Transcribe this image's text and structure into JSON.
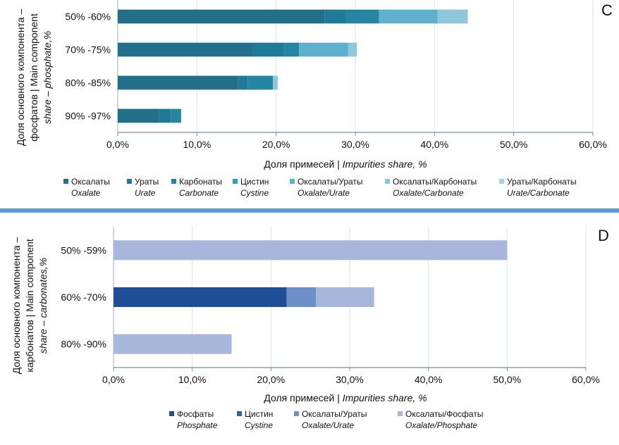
{
  "chart_data": [
    {
      "type": "bar",
      "orientation": "horizontal",
      "stacked": true,
      "panel_letter": "C",
      "categories": [
        "50% -60%",
        "70% -75%",
        "80% -85%",
        "90% -97%"
      ],
      "series": [
        {
          "name": "Оксалаты",
          "name_en": "Oxalate",
          "color": "#226f8a",
          "values": [
            26.1,
            17.0,
            15.2,
            5.2
          ]
        },
        {
          "name": "Ураты",
          "name_en": "Urate",
          "color": "#1e7a96",
          "values": [
            2.7,
            4.0,
            1.2,
            1.5
          ]
        },
        {
          "name": "Карбонаты",
          "name_en": "Carbonate",
          "color": "#2586a4",
          "values": [
            4.2,
            1.9,
            3.2,
            1.3
          ]
        },
        {
          "name": "Цистин",
          "name_en": "Cystine",
          "color": "#2a9dbe",
          "values": [
            0,
            0,
            0,
            0
          ]
        },
        {
          "name": "Оксалаты/Ураты",
          "name_en": "Oxalate/Urate",
          "color": "#5eb0cc",
          "values": [
            7.4,
            6.2,
            0,
            0
          ]
        },
        {
          "name": "Оксалаты/Карбонаты",
          "name_en": "Oxalate/Carbonate",
          "color": "#8cc7da",
          "values": [
            3.8,
            1.1,
            0.6,
            0
          ]
        },
        {
          "name": "Ураты/Карбонаты",
          "name_en": "Urate/Carbonate",
          "color": "#a8cfe0",
          "values": [
            0,
            0,
            0,
            0
          ]
        }
      ],
      "xlim": [
        0,
        60
      ],
      "xticks": [
        "0,0%",
        "10,0%",
        "20,0%",
        "30,0%",
        "40,0%",
        "50,0%",
        "60,0%"
      ],
      "xlabel": "Доля примесей |",
      "xlabel_en": "Impurities share, %",
      "ylabel_line1": "Доля основного компонента –",
      "ylabel_line2": "фосфатов    |    Main component",
      "ylabel_line3": "share    –   phosphate,%",
      "grid": "vertical",
      "legend_position": "bottom"
    },
    {
      "type": "bar",
      "orientation": "horizontal",
      "stacked": true,
      "panel_letter": "D",
      "categories": [
        "50% -59%",
        "60% -70%",
        "80% -90%"
      ],
      "series": [
        {
          "name": "Фосфаты",
          "name_en": "Phosphate",
          "color": "#1f4e96",
          "values": [
            0,
            22.0,
            0
          ]
        },
        {
          "name": "Цистин",
          "name_en": "Cystine",
          "color": "#2f63ad",
          "values": [
            0,
            0,
            0
          ]
        },
        {
          "name": "Оксалаты/Ураты",
          "name_en": "Oxalate/Urate",
          "color": "#6f8fc8",
          "values": [
            0,
            3.7,
            0
          ]
        },
        {
          "name": "Оксалаты/Фосфаты",
          "name_en": "Oxalate/Phosphate",
          "color": "#a9b6dc",
          "values": [
            50.0,
            7.4,
            15.0
          ]
        }
      ],
      "xlim": [
        0,
        60
      ],
      "xticks": [
        "0,0%",
        "10,0%",
        "20,0%",
        "30,0%",
        "40,0%",
        "50,0%",
        "60,0%"
      ],
      "xlabel": "Доля примесей |",
      "xlabel_en": "Impurities share, %",
      "ylabel_line1": "Доля основного компонента –",
      "ylabel_line2": "карбонатов    |    Main component",
      "ylabel_line3": "share   –   carbonates,%",
      "grid": "vertical",
      "legend_position": "bottom"
    }
  ]
}
